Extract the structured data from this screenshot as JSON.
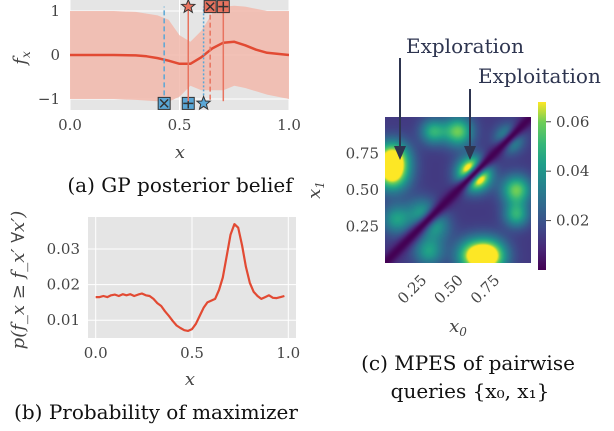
{
  "chart_data": [
    {
      "id": "a",
      "type": "line",
      "caption": "(a) GP posterior belief",
      "xlabel": "x",
      "ylabel": "f_x",
      "xlim": [
        0.0,
        1.0
      ],
      "ylim": [
        -1.25,
        1.25
      ],
      "xticks": [
        "0.0",
        "0.5",
        "1.0"
      ],
      "xtick_values": [
        0.0,
        0.5,
        1.0
      ],
      "yticks": [
        "1",
        "0",
        "−1"
      ],
      "ytick_values": [
        1,
        0,
        -1
      ],
      "grid": true,
      "series": [
        {
          "kind": "mean",
          "color": "#e24a33",
          "x": [
            0.0,
            0.1,
            0.2,
            0.3,
            0.35,
            0.4,
            0.45,
            0.5,
            0.55,
            0.6,
            0.65,
            0.7,
            0.75,
            0.8,
            0.85,
            0.9,
            1.0
          ],
          "y": [
            0.0,
            0.0,
            0.0,
            -0.01,
            -0.03,
            -0.07,
            -0.13,
            -0.2,
            -0.2,
            -0.05,
            0.15,
            0.28,
            0.3,
            0.22,
            0.12,
            0.05,
            0.0
          ]
        },
        {
          "kind": "band",
          "color": "#f2b8ac",
          "x": [
            0.0,
            0.1,
            0.2,
            0.3,
            0.4,
            0.45,
            0.5,
            0.55,
            0.6,
            0.65,
            0.7,
            0.75,
            0.8,
            0.9,
            1.0
          ],
          "upper": [
            1.0,
            1.0,
            1.0,
            0.98,
            0.9,
            0.8,
            0.45,
            0.3,
            0.55,
            0.95,
            1.1,
            1.12,
            1.1,
            1.0,
            1.0
          ],
          "lower": [
            -1.0,
            -1.0,
            -1.0,
            -1.02,
            -1.05,
            -1.06,
            -0.95,
            -0.7,
            -0.8,
            -0.8,
            -0.8,
            -0.7,
            -0.75,
            -0.9,
            -1.0
          ]
        }
      ],
      "markers": [
        {
          "x": 0.43,
          "symbol": "x-square",
          "color": "#5aa7d6",
          "side": "bottom",
          "line": "dashed"
        },
        {
          "x": 0.54,
          "symbol": "plus-square",
          "color": "#5aa7d6",
          "side": "bottom",
          "line": "dashed"
        },
        {
          "x": 0.61,
          "symbol": "star",
          "color": "#5aa7d6",
          "side": "bottom",
          "line": "dotted"
        },
        {
          "x": 0.54,
          "symbol": "star",
          "color": "#e8735f",
          "side": "top",
          "line": "solid"
        },
        {
          "x": 0.64,
          "symbol": "x-square",
          "color": "#e8735f",
          "side": "top",
          "line": "dashed"
        },
        {
          "x": 0.7,
          "symbol": "plus-square",
          "color": "#e8735f",
          "side": "top",
          "line": "solid"
        }
      ]
    },
    {
      "id": "b",
      "type": "line",
      "caption": "(b) Probability of maximizer",
      "xlabel": "x",
      "ylabel": "p(f_x ≥ f_x′ ∀x′)",
      "xlim": [
        -0.04,
        1.04
      ],
      "ylim": [
        0.005,
        0.039
      ],
      "xticks": [
        "0.0",
        "0.5",
        "1.0"
      ],
      "xtick_values": [
        0.0,
        0.5,
        1.0
      ],
      "yticks": [
        "0.03",
        "0.02",
        "0.01"
      ],
      "ytick_values": [
        0.03,
        0.02,
        0.01
      ],
      "grid": true,
      "series": [
        {
          "color": "#e24a33",
          "x": [
            0.0,
            0.02,
            0.04,
            0.06,
            0.08,
            0.1,
            0.12,
            0.14,
            0.16,
            0.18,
            0.2,
            0.22,
            0.24,
            0.26,
            0.28,
            0.3,
            0.32,
            0.34,
            0.36,
            0.38,
            0.4,
            0.42,
            0.44,
            0.46,
            0.48,
            0.5,
            0.52,
            0.54,
            0.56,
            0.58,
            0.6,
            0.62,
            0.64,
            0.66,
            0.68,
            0.7,
            0.72,
            0.74,
            0.76,
            0.78,
            0.8,
            0.82,
            0.84,
            0.86,
            0.88,
            0.9,
            0.92,
            0.94,
            0.96,
            0.98
          ],
          "y": [
            0.0165,
            0.0165,
            0.0168,
            0.0165,
            0.017,
            0.0172,
            0.0168,
            0.0173,
            0.017,
            0.0173,
            0.0168,
            0.0172,
            0.0175,
            0.017,
            0.0168,
            0.016,
            0.0148,
            0.014,
            0.0125,
            0.0112,
            0.0098,
            0.0085,
            0.0078,
            0.0072,
            0.007,
            0.0075,
            0.009,
            0.0112,
            0.0135,
            0.015,
            0.0155,
            0.016,
            0.0185,
            0.022,
            0.028,
            0.034,
            0.037,
            0.036,
            0.031,
            0.025,
            0.0205,
            0.018,
            0.0168,
            0.016,
            0.0165,
            0.017,
            0.0163,
            0.0162,
            0.0165,
            0.0168
          ]
        }
      ]
    },
    {
      "id": "c",
      "type": "heatmap",
      "caption_line1": "(c) MPES of pairwise",
      "caption_line2": "queries {x₀, x₁}",
      "xlabel": "x₀",
      "ylabel": "x₁",
      "xlim": [
        0.0,
        1.0
      ],
      "ylim": [
        0.0,
        1.0
      ],
      "xticks": [
        "0.25",
        "0.50",
        "0.75"
      ],
      "xtick_values": [
        0.25,
        0.5,
        0.75
      ],
      "yticks": [
        "0.75",
        "0.50",
        "0.25"
      ],
      "ytick_values": [
        0.75,
        0.5,
        0.25
      ],
      "colorbar_ticks": [
        "0.06",
        "0.04",
        "0.02"
      ],
      "colorbar_values": [
        0.06,
        0.04,
        0.02
      ],
      "zlim": [
        0.0,
        0.068
      ],
      "colormap": "viridis",
      "annotations": [
        {
          "text": "Exploration",
          "target": [
            0.08,
            0.75
          ]
        },
        {
          "text": "Exploitation",
          "target": [
            0.6,
            0.62
          ]
        }
      ]
    }
  ]
}
